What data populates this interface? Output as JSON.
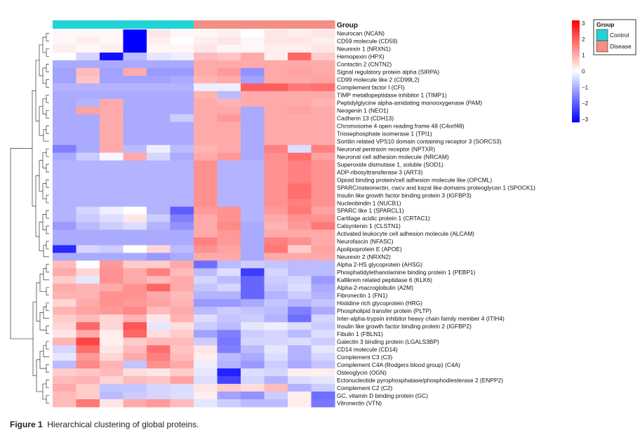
{
  "caption": {
    "label": "Figure 1",
    "text": "Hierarchical clustering of global proteins."
  },
  "chart_data": {
    "type": "heatmap",
    "title": "",
    "annotation_label": "Group",
    "groups": [
      {
        "name": "Control",
        "color": "#22d3d6"
      },
      {
        "name": "Disease",
        "color": "#f48f86"
      }
    ],
    "column_groups": [
      "Control",
      "Control",
      "Control",
      "Control",
      "Control",
      "Control",
      "Disease",
      "Disease",
      "Disease",
      "Disease",
      "Disease",
      "Disease"
    ],
    "color_scale": {
      "min": -3,
      "max": 3,
      "low": "#0000ff",
      "mid": "#ffffff",
      "high": "#ff0000",
      "ticks": [
        "3",
        "2",
        "1",
        "0",
        "−1",
        "−2",
        "−3"
      ]
    },
    "rows": [
      {
        "label": "Neurocan (NCAN)",
        "values": [
          0.1,
          0.1,
          0.1,
          -3,
          0.3,
          0.1,
          0.1,
          0.2,
          0.0,
          0.3,
          0.2,
          0.3
        ]
      },
      {
        "label": "CD59 molecule (CD59)",
        "values": [
          0.1,
          0.2,
          0.1,
          -3,
          0.2,
          0.0,
          0.2,
          0.3,
          0.1,
          0.3,
          0.3,
          0.2
        ]
      },
      {
        "label": "Neurexin 1 (NRXN1)",
        "values": [
          0.2,
          0.1,
          0.2,
          -3,
          0.1,
          0.1,
          0.3,
          0.1,
          0.1,
          0.2,
          0.2,
          0.3
        ]
      },
      {
        "label": "Hemopexin (HPX)",
        "values": [
          0.0,
          -0.5,
          -2.8,
          -0.8,
          -0.3,
          -0.2,
          0.8,
          0.7,
          1.0,
          0.2,
          1.8,
          0.6
        ]
      },
      {
        "label": "Contactin 2 (CNTN2)",
        "values": [
          -1,
          -1,
          -1,
          -1,
          -1,
          -1,
          1,
          1,
          1,
          1,
          1,
          1
        ]
      },
      {
        "label": "Signal regulatory protein alpha (SIRPA)",
        "values": [
          -1.1,
          0.8,
          -1.1,
          1.0,
          -1.2,
          -1.2,
          1.0,
          1.2,
          -1.3,
          1.0,
          1.1,
          1.0
        ]
      },
      {
        "label": "CD99 molecule like 2 (CD99L2)",
        "values": [
          -1.1,
          0.7,
          -1.1,
          -1.1,
          -1.1,
          -1.0,
          0.9,
          1.0,
          -1.1,
          1.0,
          1.0,
          1.1
        ]
      },
      {
        "label": "Complement factor I (CFI)",
        "values": [
          -0.9,
          -0.9,
          -0.9,
          -0.9,
          -0.9,
          -0.9,
          -0.2,
          -0.2,
          1.9,
          1.9,
          1.6,
          1.7
        ]
      },
      {
        "label": "TIMP metallopeptidase inhibitor 1 (TIMP1)",
        "values": [
          -1.0,
          -1.0,
          -1.0,
          -1.0,
          -1.0,
          -1.0,
          0.9,
          -0.8,
          1.0,
          1.0,
          1.0,
          1.0
        ]
      },
      {
        "label": "Peptidylglycine alpha-amidating monooxygenase (PAM)",
        "values": [
          -1.0,
          -0.9,
          1.0,
          -1.0,
          -1.0,
          -1.0,
          1.0,
          0.9,
          1.0,
          1.0,
          1.0,
          0.9
        ]
      },
      {
        "label": "Neogenin 1 (NEO1)",
        "values": [
          -1.0,
          1.1,
          1.0,
          -1.0,
          -1.0,
          -1.0,
          1.0,
          1.0,
          -1.0,
          1.0,
          1.1,
          1.0
        ]
      },
      {
        "label": "Cadherin 13 (CDH13)",
        "values": [
          -1.0,
          -1.0,
          1.0,
          -1.0,
          -1.0,
          -0.6,
          1.0,
          1.2,
          -1.0,
          1.0,
          1.0,
          1.0
        ]
      },
      {
        "label": "Chromosome 4 open reading frame 48 (C4orf48)",
        "values": [
          -1.0,
          -1.0,
          1.0,
          -1.0,
          -1.0,
          -1.0,
          1.0,
          1.0,
          -1.0,
          1.0,
          1.0,
          1.0
        ]
      },
      {
        "label": "Triosephosphate isomerase 1 (TPI1)",
        "values": [
          -1.0,
          -1.0,
          1.0,
          -1.0,
          -1.0,
          -1.0,
          1.0,
          1.0,
          -1.0,
          1.0,
          1.0,
          1.0
        ]
      },
      {
        "label": "Sortilin related VPS10 domain containing receptor 3 (SORCS3)",
        "values": [
          -1.0,
          -1.0,
          1.0,
          -1.0,
          -1.0,
          -1.0,
          1.0,
          1.0,
          -1.0,
          1.0,
          1.0,
          1.0
        ]
      },
      {
        "label": "Neuronal pentraxin receptor (NPTXR)",
        "values": [
          -1.5,
          -1.0,
          1.0,
          -0.8,
          -0.2,
          -0.8,
          0.9,
          1.0,
          -1.0,
          1.5,
          -0.4,
          1.5
        ]
      },
      {
        "label": "Neuronal cell adhesion molecule (NRCAM)",
        "values": [
          -1.0,
          -0.6,
          -0.1,
          1.0,
          -0.5,
          -1.0,
          1.0,
          1.2,
          -1.0,
          1.3,
          1.7,
          1.1
        ]
      },
      {
        "label": "Superoxide dismutase 1, soluble (SOD1)",
        "values": [
          -0.9,
          -0.9,
          -0.9,
          -0.9,
          -0.9,
          -0.9,
          1.3,
          -0.9,
          -0.9,
          1.3,
          1.5,
          1.3
        ]
      },
      {
        "label": "ADP-ribosyltransferase 3 (ART3)",
        "values": [
          -0.9,
          -0.9,
          -0.9,
          -0.9,
          -0.9,
          -0.9,
          1.3,
          -0.9,
          -0.9,
          1.3,
          1.5,
          1.3
        ]
      },
      {
        "label": "Opioid binding protein/cell adhesion molecule like (OPCML)",
        "values": [
          -0.9,
          -0.9,
          -0.9,
          -0.9,
          -0.9,
          -0.9,
          1.3,
          -0.9,
          -0.9,
          1.3,
          1.5,
          1.3
        ]
      },
      {
        "label": "SPARC/osteonectin, cwcv and kazal like domains proteoglycan 1 (SPOCK1)",
        "values": [
          -0.9,
          -0.9,
          -0.9,
          -0.9,
          -0.9,
          -0.9,
          1.3,
          -0.9,
          -0.9,
          1.3,
          1.7,
          1.3
        ]
      },
      {
        "label": "Insulin like growth factor binding protein 3 (IGFBP3)",
        "values": [
          -0.9,
          -0.9,
          -0.9,
          -0.9,
          -0.9,
          -0.9,
          1.3,
          -0.9,
          -0.9,
          1.3,
          1.7,
          1.3
        ]
      },
      {
        "label": "Nucleobindin 1 (NUCB1)",
        "values": [
          -0.9,
          -0.9,
          -0.9,
          -0.9,
          -0.9,
          -0.9,
          1.3,
          -0.9,
          -0.9,
          1.3,
          1.5,
          1.3
        ]
      },
      {
        "label": "SPARC like 1 (SPARCL1)",
        "values": [
          -0.9,
          -0.5,
          -0.2,
          0.0,
          -0.9,
          -1.9,
          1.2,
          1.3,
          -0.9,
          1.2,
          1.6,
          1.1
        ]
      },
      {
        "label": "Cartilage acidic protein 1 (CRTAC1)",
        "values": [
          -0.9,
          -0.6,
          -0.4,
          0.3,
          -0.6,
          -1.5,
          1.0,
          1.3,
          -0.9,
          1.0,
          1.3,
          1.3
        ]
      },
      {
        "label": "Calsyntenin 1 (CLSTN1)",
        "values": [
          -1.2,
          -0.8,
          -0.6,
          -0.4,
          -0.9,
          -1.3,
          1.0,
          1.4,
          -1.0,
          0.9,
          1.2,
          1.6
        ]
      },
      {
        "label": "Activated leukocyte cell adhesion molecule (ALCAM)",
        "values": [
          -1.0,
          -1.0,
          -1.0,
          -1.0,
          -1.0,
          -1.0,
          1.0,
          1.2,
          -1.0,
          1.0,
          1.0,
          1.0
        ]
      },
      {
        "label": "Neurofascin (NFASC)",
        "values": [
          -1.0,
          -1.0,
          -1.0,
          -1.0,
          -1.0,
          -1.0,
          1.5,
          1.2,
          -1.0,
          1.5,
          1.3,
          1.0
        ]
      },
      {
        "label": "Apolipoprotein E (APOE)",
        "values": [
          -2.5,
          -0.5,
          -0.6,
          0.0,
          0.5,
          -0.8,
          1.3,
          1.1,
          -1.0,
          1.6,
          0.6,
          1.1
        ]
      },
      {
        "label": "Neurexin 2 (NRXN2)",
        "values": [
          -1.0,
          -1.0,
          -1.0,
          -1.0,
          -1.2,
          -1.0,
          1.0,
          1.0,
          -1.0,
          1.0,
          1.0,
          1.0
        ]
      },
      {
        "label": "Alpha 2-HS glycoprotein (AHSG)",
        "values": [
          0.8,
          0.0,
          1.2,
          0.6,
          0.6,
          1.0,
          -1.7,
          -0.8,
          -0.6,
          -0.7,
          -0.8,
          -0.8
        ]
      },
      {
        "label": "Phosphatidylethanolamine binding protein 1 (PEBP1)",
        "values": [
          1.0,
          0.5,
          1.3,
          1.0,
          1.5,
          0.8,
          -0.8,
          -0.4,
          -2.3,
          -0.5,
          -0.8,
          -0.8
        ]
      },
      {
        "label": "Kallikrein related peptidase 6 (KLK6)",
        "values": [
          0.6,
          -0.3,
          1.3,
          1.0,
          0.8,
          1.0,
          -0.5,
          -0.8,
          -1.8,
          -0.6,
          -0.5,
          -1.2
        ]
      },
      {
        "label": "Alpha-2-macroglobulin (A2M)",
        "values": [
          1.0,
          0.9,
          1.0,
          1.3,
          1.8,
          1.0,
          -0.7,
          -0.5,
          -1.8,
          -0.7,
          -0.4,
          -1.0
        ]
      },
      {
        "label": "Fibronectin 1 (FN1)",
        "values": [
          0.9,
          0.9,
          1.3,
          1.3,
          1.0,
          0.8,
          -0.9,
          -0.9,
          -1.8,
          -0.9,
          -0.6,
          -0.9
        ]
      },
      {
        "label": "Histidine rich glycoprotein (HRG)",
        "values": [
          0.5,
          1.0,
          1.3,
          1.2,
          1.1,
          0.9,
          -1.2,
          -1.2,
          -1.0,
          -0.7,
          -0.9,
          -0.7
        ]
      },
      {
        "label": "Phospholipid transfer protein (PLTP)",
        "values": [
          0.9,
          1.1,
          1.2,
          1.4,
          0.8,
          1.0,
          -0.8,
          -0.6,
          -0.7,
          -0.8,
          -1.5,
          -1.0
        ]
      },
      {
        "label": "Inter-alpha-trypsin inhibitor heavy chain family member 4 (ITIH4)",
        "values": [
          0.6,
          0.8,
          0.5,
          0.9,
          0.3,
          0.9,
          -0.4,
          -0.7,
          -0.6,
          -0.9,
          -1.7,
          -0.5
        ]
      },
      {
        "label": "Insulin like growth factor binding protein 2 (IGFBP2)",
        "values": [
          0.5,
          1.8,
          0.5,
          2.0,
          -0.3,
          0.4,
          -0.6,
          -0.8,
          -0.3,
          -0.2,
          -0.4,
          -0.6
        ]
      },
      {
        "label": "Fibulin 1 (FBLN1)",
        "values": [
          0.3,
          1.0,
          0.2,
          1.8,
          0.4,
          0.6,
          -1.1,
          -1.5,
          -0.6,
          -0.5,
          -0.8,
          -0.4
        ]
      },
      {
        "label": "Galectin 3 binding protein (LGALS3BP)",
        "values": [
          0.9,
          2.2,
          0.2,
          0.6,
          0.8,
          0.8,
          -0.6,
          -1.6,
          -0.5,
          -0.5,
          -0.4,
          -0.6
        ]
      },
      {
        "label": "CD14 molecule (CD14)",
        "values": [
          -0.5,
          1.7,
          0.3,
          0.8,
          1.7,
          0.7,
          0.3,
          -1.5,
          -0.8,
          -0.3,
          -0.9,
          -0.3
        ]
      },
      {
        "label": "Complement C3 (C3)",
        "values": [
          -0.3,
          1.2,
          0.5,
          1.0,
          1.5,
          0.8,
          0.2,
          -0.8,
          -1.0,
          -0.4,
          -0.9,
          -0.5
        ]
      },
      {
        "label": "Complement C4A (Rodgers blood group) (C4A)",
        "values": [
          -0.8,
          1.4,
          0.9,
          -0.7,
          1.3,
          1.0,
          -0.2,
          -0.9,
          -1.2,
          -0.6,
          -1.0,
          -0.7
        ]
      },
      {
        "label": "Osteoglycin (OGN)",
        "values": [
          0.6,
          0.7,
          0.8,
          0.4,
          0.3,
          0.6,
          -0.3,
          -2.6,
          -0.4,
          -0.5,
          0.2,
          0.2
        ]
      },
      {
        "label": "Ectonucleotide pyrophosphatase/phosphodiesterase 2 (ENPP2)",
        "values": [
          0.8,
          0.9,
          0.5,
          0.8,
          0.7,
          1.1,
          -0.4,
          -2.2,
          -0.5,
          -0.9,
          -0.4,
          -0.3
        ]
      },
      {
        "label": "Complement C2 (C2)",
        "values": [
          1.0,
          0.6,
          -0.7,
          -0.7,
          -0.5,
          -0.4,
          0.3,
          0.6,
          0.4,
          0.8,
          -0.9,
          -0.6
        ]
      },
      {
        "label": "GC, vitamin D binding protein (GC)",
        "values": [
          0.8,
          0.6,
          -0.8,
          -0.6,
          -0.5,
          -0.4,
          0.2,
          -1.1,
          -1.3,
          -0.6,
          0.2,
          -1.7
        ]
      },
      {
        "label": "Vitronectin (VTN)",
        "values": [
          0.8,
          1.6,
          0.3,
          1.0,
          1.2,
          0.8,
          -0.3,
          -0.6,
          -0.8,
          -0.8,
          0.2,
          -1.6
        ]
      }
    ]
  }
}
